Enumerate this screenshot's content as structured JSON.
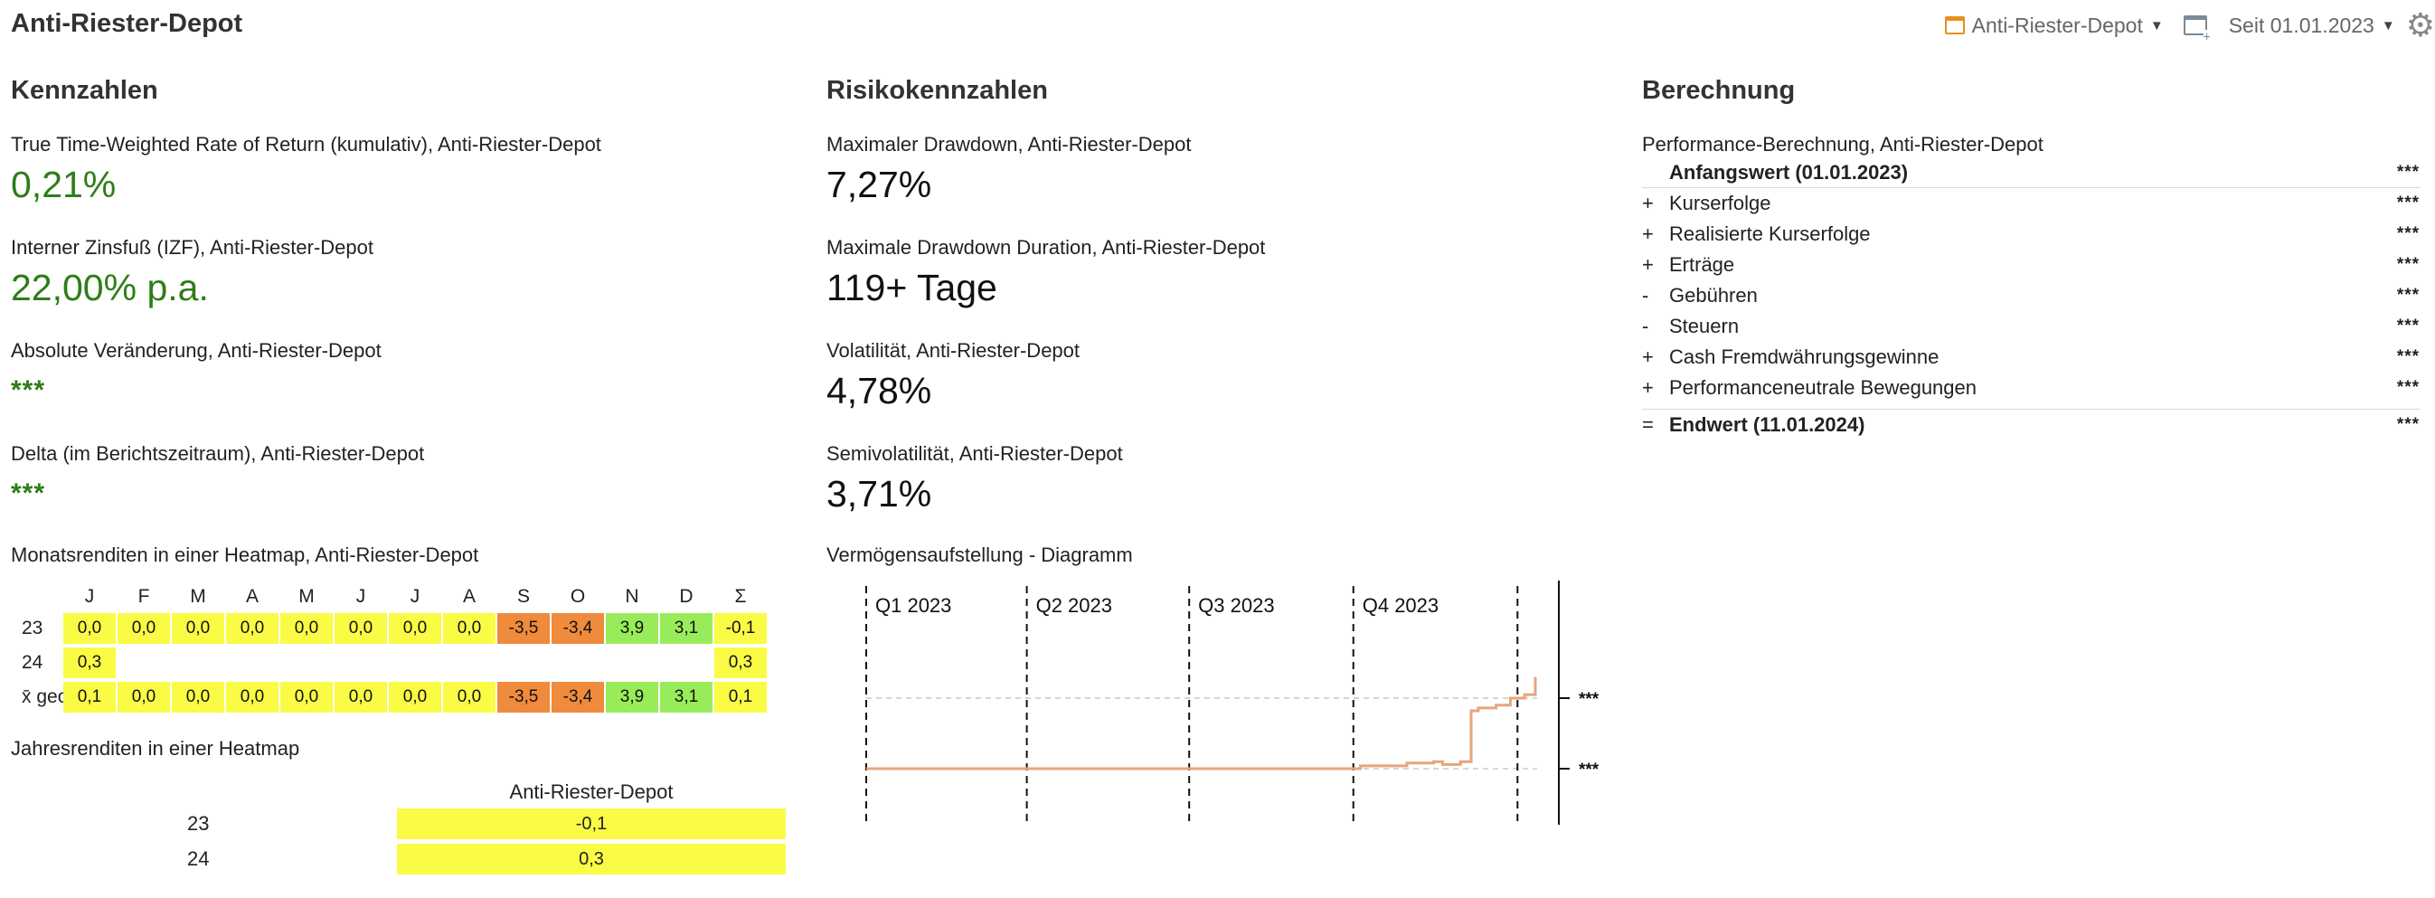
{
  "header": {
    "title": "Anti-Riester-Depot",
    "portfolio_selector": "Anti-Riester-Depot",
    "period_selector": "Seit 01.01.2023"
  },
  "kennzahlen": {
    "title": "Kennzahlen",
    "ttwror_label": "True Time-Weighted Rate of Return (kumulativ), Anti-Riester-Depot",
    "ttwror_value": "0,21%",
    "izf_label": "Interner Zinsfuß (IZF), Anti-Riester-Depot",
    "izf_value": "22,00% p.a.",
    "abs_label": "Absolute Veränderung, Anti-Riester-Depot",
    "abs_value": "***",
    "delta_label": "Delta (im Berichtszeitraum), Anti-Riester-Depot",
    "delta_value": "***",
    "monthly_heatmap": {
      "label": "Monatsrenditen in einer Heatmap, Anti-Riester-Depot",
      "months": [
        "J",
        "F",
        "M",
        "A",
        "M",
        "J",
        "J",
        "A",
        "S",
        "O",
        "N",
        "D",
        "Σ"
      ],
      "rows": [
        {
          "label": "23",
          "cells": [
            "0,0",
            "0,0",
            "0,0",
            "0,0",
            "0,0",
            "0,0",
            "0,0",
            "0,0",
            "-3,5",
            "-3,4",
            "3,9",
            "3,1",
            "-0,1"
          ],
          "colors": [
            "y",
            "y",
            "y",
            "y",
            "y",
            "y",
            "y",
            "y",
            "o",
            "o",
            "g",
            "g",
            "y"
          ]
        },
        {
          "label": "24",
          "cells": [
            "0,3",
            "",
            "",
            "",
            "",
            "",
            "",
            "",
            "",
            "",
            "",
            "",
            "0,3"
          ],
          "colors": [
            "y",
            "",
            "",
            "",
            "",
            "",
            "",
            "",
            "",
            "",
            "",
            "",
            "y"
          ]
        },
        {
          "label": "x̄ geo",
          "cells": [
            "0,1",
            "0,0",
            "0,0",
            "0,0",
            "0,0",
            "0,0",
            "0,0",
            "0,0",
            "-3,5",
            "-3,4",
            "3,9",
            "3,1",
            "0,1"
          ],
          "colors": [
            "y",
            "y",
            "y",
            "y",
            "y",
            "y",
            "y",
            "y",
            "o",
            "o",
            "g",
            "g",
            "y"
          ]
        }
      ]
    },
    "yearly_heatmap": {
      "label": "Jahresrenditen in einer Heatmap",
      "column": "Anti-Riester-Depot",
      "rows": [
        {
          "label": "23",
          "value": "-0,1"
        },
        {
          "label": "24",
          "value": "0,3"
        }
      ]
    }
  },
  "risiko": {
    "title": "Risikokennzahlen",
    "mdd_label": "Maximaler Drawdown, Anti-Riester-Depot",
    "mdd_value": "7,27%",
    "mddd_label": "Maximale Drawdown Duration, Anti-Riester-Depot",
    "mddd_value": "119+ Tage",
    "vol_label": "Volatilität, Anti-Riester-Depot",
    "vol_value": "4,78%",
    "semivol_label": "Semivolatilität, Anti-Riester-Depot",
    "semivol_value": "3,71%",
    "chart_label": "Vermögensaufstellung - Diagramm"
  },
  "chart_data": {
    "type": "line",
    "quarters": [
      "Q1 2023",
      "Q2 2023",
      "Q3 2023",
      "Q4 2023"
    ],
    "y_tick_labels": [
      "***",
      "***"
    ],
    "line_color": "#e6a57c",
    "series": [
      {
        "x": [
          "2023-01-01",
          "2023-04-01",
          "2023-07-01",
          "2023-10-01",
          "2023-10-05",
          "2023-10-15",
          "2023-10-31",
          "2023-11-15",
          "2023-11-20",
          "2023-11-30",
          "2023-12-05",
          "2023-12-06",
          "2023-12-10",
          "2023-12-20",
          "2023-12-28",
          "2024-01-05",
          "2024-01-11"
        ],
        "y": [
          0,
          0,
          0,
          0,
          0.04,
          0.04,
          0.08,
          0.1,
          0.06,
          0.1,
          0.1,
          0.82,
          0.86,
          0.9,
          1.0,
          1.05,
          1.3
        ]
      }
    ]
  },
  "berechnung": {
    "title": "Berechnung",
    "caption": "Performance-Berechnung, Anti-Riester-Depot",
    "start": {
      "label": "Anfangswert (01.01.2023)",
      "value": "***"
    },
    "items": [
      {
        "sign": "+",
        "label": "Kurserfolge",
        "value": "***"
      },
      {
        "sign": "+",
        "label": "Realisierte Kurserfolge",
        "value": "***"
      },
      {
        "sign": "+",
        "label": "Erträge",
        "value": "***"
      },
      {
        "sign": "-",
        "label": "Gebühren",
        "value": "***"
      },
      {
        "sign": "-",
        "label": "Steuern",
        "value": "***"
      },
      {
        "sign": "+",
        "label": "Cash Fremdwährungsgewinne",
        "value": "***"
      },
      {
        "sign": "+",
        "label": "Performanceneutrale Bewegungen",
        "value": "***"
      }
    ],
    "end": {
      "sign": "=",
      "label": "Endwert (11.01.2024)",
      "value": "***"
    }
  }
}
